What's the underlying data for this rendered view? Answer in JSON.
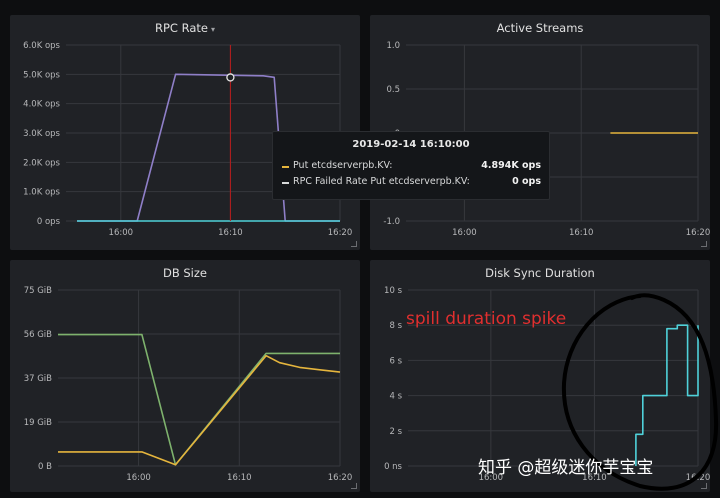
{
  "colors": {
    "background": "#0d0e10",
    "panel": "#202226",
    "purple": "#8f7fc8",
    "cyan": "#4fd1d9",
    "yellow": "#e5b53d",
    "green": "#7eb26d",
    "crosshair": "#b91c1c",
    "annotation": "#e02f2f"
  },
  "panels": {
    "rpc_rate": {
      "title": "RPC Rate",
      "caret": "▾",
      "chart_data": {
        "type": "line",
        "yticks": [
          "6.0K ops",
          "5.0K ops",
          "4.0K ops",
          "3.0K ops",
          "2.0K ops",
          "1.0K ops",
          "0 ops"
        ],
        "xticks": [
          "16:00",
          "16:10",
          "16:20"
        ],
        "ylim": [
          0,
          6000
        ],
        "series": [
          {
            "name": "Put etcdserverpb.KV:",
            "color": "#8f7fc8",
            "x": [
              "15:56:00",
              "16:01:30",
              "16:05:00",
              "16:13:00",
              "16:14:00",
              "16:15:00",
              "16:18:00",
              "16:20:00"
            ],
            "y": [
              0,
              0,
              5000,
              4950,
              4900,
              0,
              0,
              0
            ]
          },
          {
            "name": "RPC Failed Rate Put etcdserverpb.KV:",
            "color": "#4fd1d9",
            "x": [
              "15:56:00",
              "16:20:00"
            ],
            "y": [
              0,
              0
            ]
          }
        ],
        "crosshair_time": "16:10:00",
        "hover_value": 4894
      }
    },
    "active_streams": {
      "title": "Active Streams",
      "chart_data": {
        "type": "line",
        "yticks": [
          "1.0",
          "0.5",
          "0",
          "-0.5",
          "-1.0"
        ],
        "xticks": [
          "16:00",
          "16:10",
          "16:20"
        ],
        "ylim": [
          -1,
          1
        ],
        "series": [
          {
            "color": "#e5b53d",
            "x": [
              "16:12:30",
              "16:20:00"
            ],
            "y": [
              0,
              0
            ]
          }
        ]
      }
    },
    "db_size": {
      "title": "DB Size",
      "chart_data": {
        "type": "line",
        "yticks": [
          "75 GiB",
          "56 GiB",
          "37 GiB",
          "19 GiB",
          "0 B"
        ],
        "xticks": [
          "16:00",
          "16:10",
          "16:20"
        ],
        "ylim": [
          0,
          75
        ],
        "series": [
          {
            "color": "#7eb26d",
            "x": [
              "15:52:00",
              "16:00:20",
              "16:03:40",
              "16:12:40",
              "16:20:00"
            ],
            "y": [
              56,
              56,
              0.5,
              48,
              48
            ]
          },
          {
            "color": "#e5b53d",
            "x": [
              "15:52:00",
              "16:00:20",
              "16:03:40",
              "16:12:40",
              "16:14:00",
              "16:16:00",
              "16:18:00",
              "16:20:00"
            ],
            "y": [
              6,
              6,
              0.5,
              47,
              44,
              42,
              41,
              40
            ]
          }
        ]
      }
    },
    "disk_sync": {
      "title": "Disk Sync Duration",
      "chart_data": {
        "type": "line",
        "yticks": [
          "10 s",
          "8 s",
          "6 s",
          "4 s",
          "2 s",
          "0 ns"
        ],
        "xticks": [
          "16:00",
          "16:10",
          "16:20"
        ],
        "ylim": [
          0,
          10
        ],
        "series": [
          {
            "color": "#4fd1d9",
            "x": [
              "16:14:00",
              "16:14:00",
              "16:14:40",
              "16:14:40",
              "16:17:00",
              "16:17:00",
              "16:18:00",
              "16:18:00",
              "16:19:00",
              "16:19:00",
              "16:20:00",
              "16:20:00"
            ],
            "y": [
              0,
              1.8,
              1.8,
              4,
              4,
              7.8,
              7.8,
              8,
              8,
              4,
              4,
              8
            ]
          }
        ]
      }
    }
  },
  "tooltip": {
    "time": "2019-02-14 16:10:00",
    "rows": [
      {
        "label": "Put etcdserverpb.KV:",
        "value": "4.894K ops",
        "color": "#e5b53d"
      },
      {
        "label": "RPC Failed Rate Put etcdserverpb.KV:",
        "value": "0 ops",
        "color": "#d8d9da"
      }
    ]
  },
  "annotation": {
    "text": "spill duration spike"
  },
  "watermark": {
    "text": "知乎 @超级迷你芋宝宝"
  }
}
